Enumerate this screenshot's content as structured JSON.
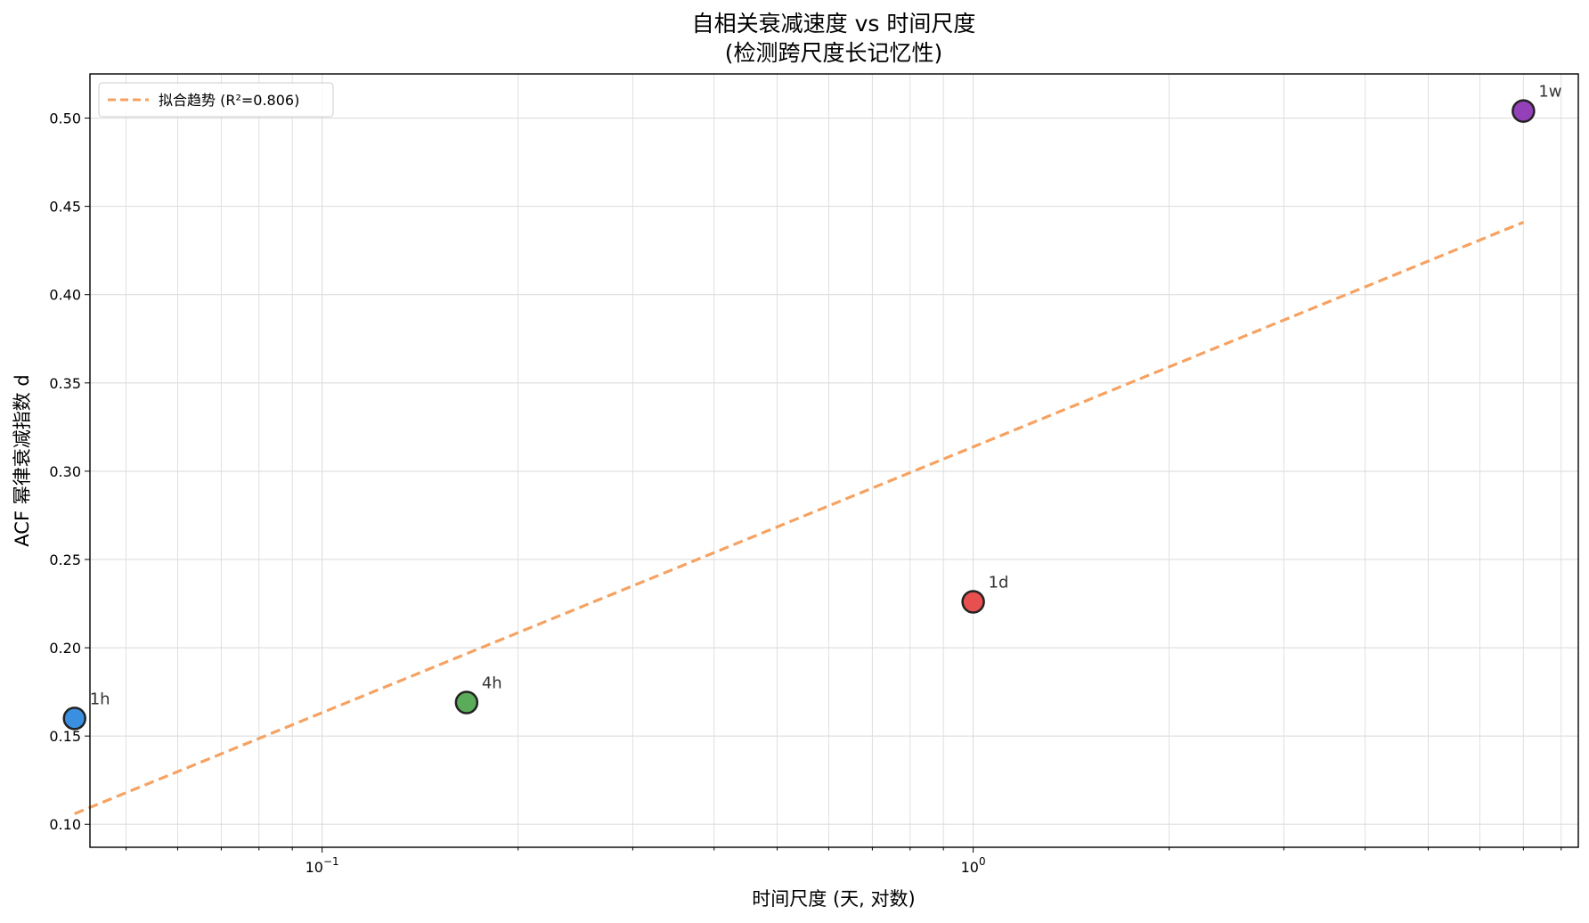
{
  "chart_data": {
    "type": "scatter",
    "title": "自相关衰减速度 vs 时间尺度",
    "subtitle": "(检测跨尺度长记忆性)",
    "xlabel": "时间尺度 (天, 对数)",
    "ylabel": "ACF 幂律衰减指数 d",
    "x_scale": "log",
    "xlim": [
      0.044,
      8.5
    ],
    "ylim": [
      0.087,
      0.525
    ],
    "x_ticks": [
      {
        "value": 0.1,
        "base": "10",
        "exp": "−1"
      },
      {
        "value": 1,
        "base": "10",
        "exp": "0"
      }
    ],
    "y_ticks": [
      0.1,
      0.15,
      0.2,
      0.25,
      0.3,
      0.35,
      0.4,
      0.45,
      0.5
    ],
    "y_tick_labels": [
      "0.10",
      "0.15",
      "0.20",
      "0.25",
      "0.30",
      "0.35",
      "0.40",
      "0.45",
      "0.50"
    ],
    "grid": true,
    "legend_position": "top-left",
    "points": [
      {
        "label": "1h",
        "x": 0.04167,
        "y": 0.16,
        "color": "#3b8fe0"
      },
      {
        "label": "4h",
        "x": 0.1667,
        "y": 0.169,
        "color": "#5aab5a"
      },
      {
        "label": "1d",
        "x": 1.0,
        "y": 0.226,
        "color": "#e85050"
      },
      {
        "label": "1w",
        "x": 7.0,
        "y": 0.504,
        "color": "#9440b8"
      }
    ],
    "trend": {
      "name": "拟合趋势 (R²=0.806)",
      "x": [
        0.04167,
        7.0
      ],
      "y": [
        0.106,
        0.441
      ],
      "color": "#f5a262"
    }
  }
}
